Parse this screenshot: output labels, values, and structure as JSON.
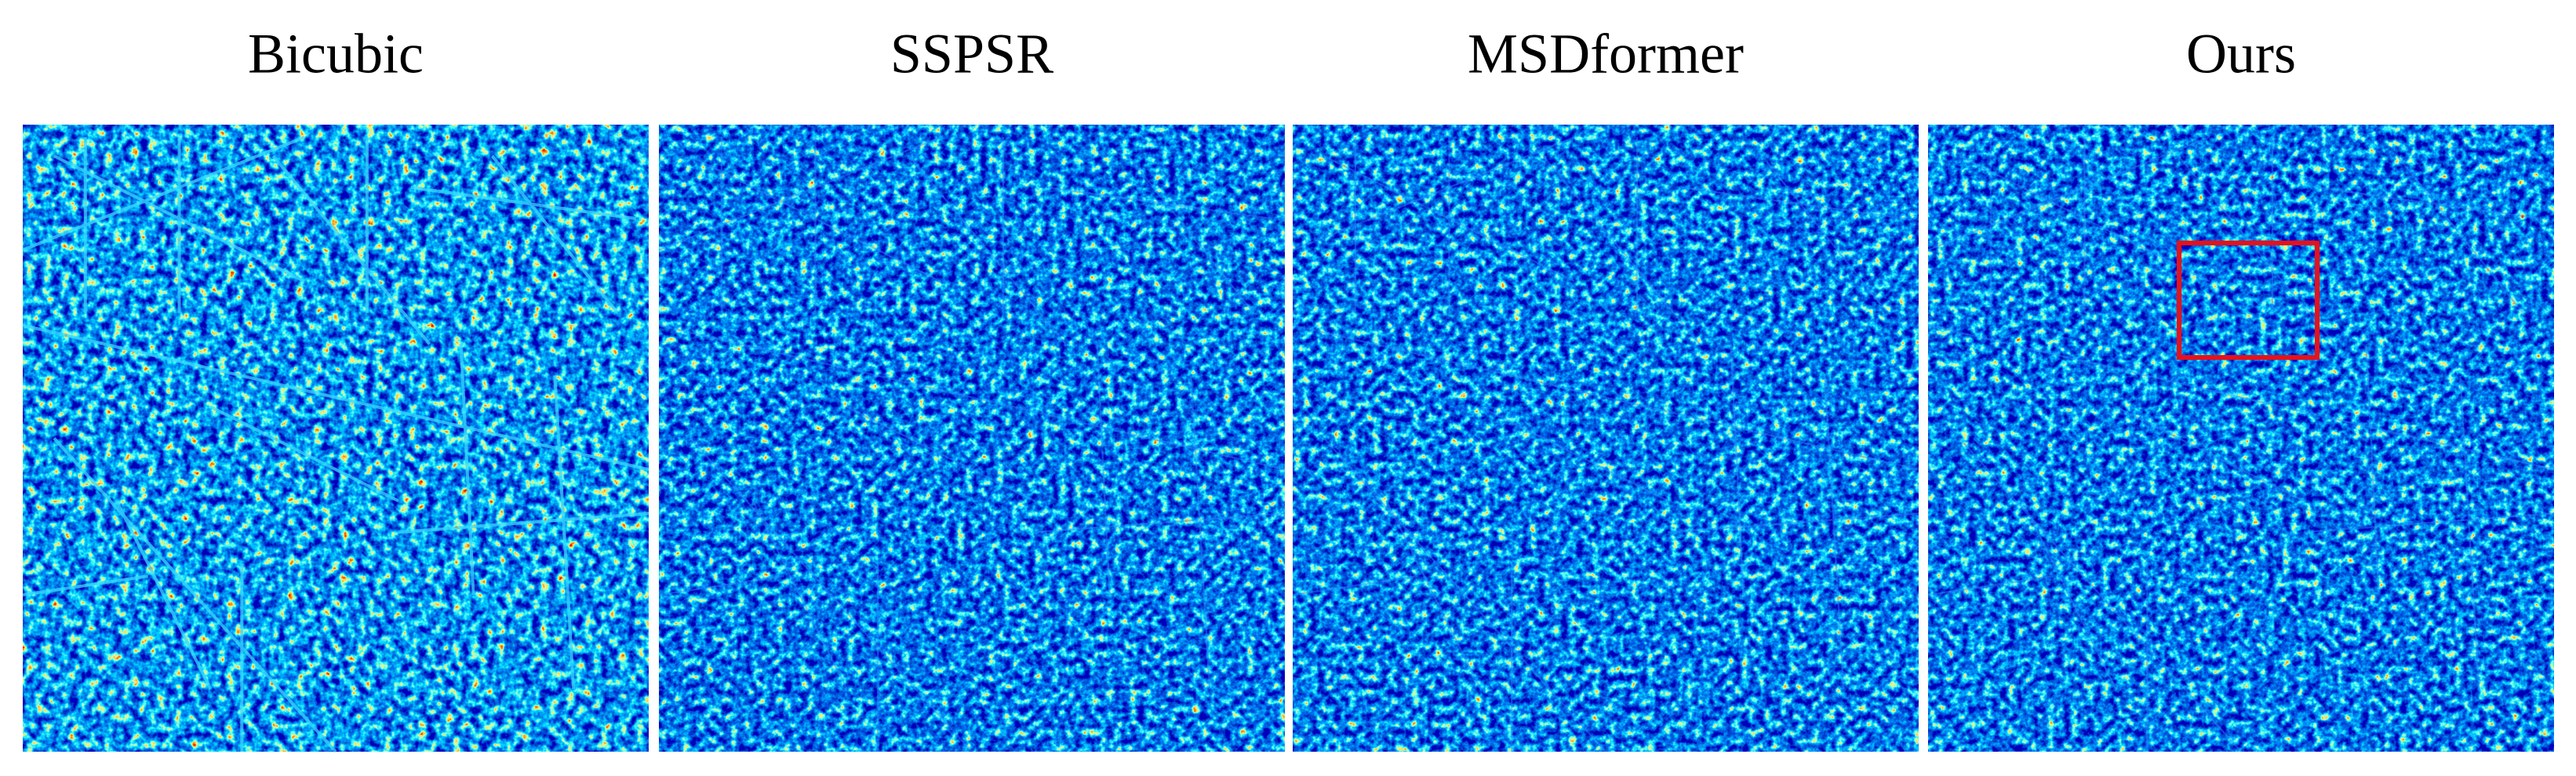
{
  "panels": [
    {
      "title": "Bicubic"
    },
    {
      "title": "SSPSR"
    },
    {
      "title": "MSDformer"
    },
    {
      "title": "Ours"
    }
  ]
}
